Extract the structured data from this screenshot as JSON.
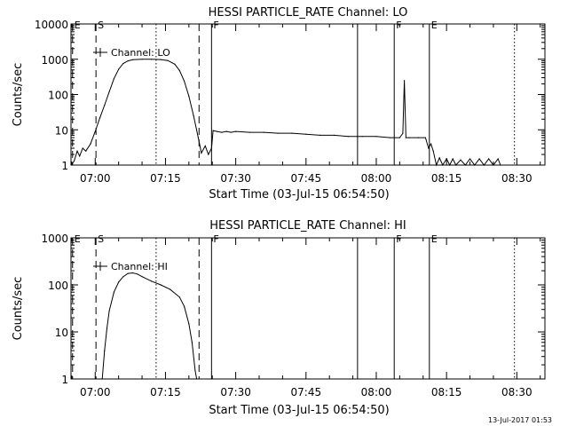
{
  "footer": {
    "timestamp": "13-Jul-2017 01:53"
  },
  "chart_data": [
    {
      "type": "line",
      "title": "HESSI PARTICLE_RATE Channel: LO",
      "xlabel": "Start Time (03-Jul-15 06:54:50)",
      "ylabel": "Counts/sec",
      "yscale": "log",
      "xlim": [
        "06:54:50",
        "08:36:00"
      ],
      "ylim": [
        1,
        10000
      ],
      "x_ticks": [
        "07:00",
        "07:15",
        "07:30",
        "07:45",
        "08:00",
        "08:15",
        "08:30"
      ],
      "y_ticks": [
        "1",
        "10",
        "100",
        "1000",
        "10000"
      ],
      "legend": {
        "position": "top-left",
        "entries": [
          "Channel: LO"
        ]
      },
      "series": [
        {
          "name": "Channel: LO",
          "points": [
            [
              "06:54:50",
              1
            ],
            [
              "06:55:30",
              1.3
            ],
            [
              "06:56:10",
              2.5
            ],
            [
              "06:56:40",
              1.8
            ],
            [
              "06:57:20",
              3
            ],
            [
              "06:58:00",
              2.5
            ],
            [
              "06:59:00",
              4
            ],
            [
              "07:00:00",
              9
            ],
            [
              "07:01:00",
              22
            ],
            [
              "07:02:00",
              50
            ],
            [
              "07:03:00",
              120
            ],
            [
              "07:04:00",
              280
            ],
            [
              "07:05:00",
              520
            ],
            [
              "07:06:00",
              760
            ],
            [
              "07:07:00",
              900
            ],
            [
              "07:08:00",
              970
            ],
            [
              "07:10:00",
              1000
            ],
            [
              "07:12:00",
              1000
            ],
            [
              "07:14:00",
              980
            ],
            [
              "07:15:30",
              920
            ],
            [
              "07:17:00",
              720
            ],
            [
              "07:18:00",
              480
            ],
            [
              "07:19:00",
              240
            ],
            [
              "07:20:00",
              90
            ],
            [
              "07:21:00",
              25
            ],
            [
              "07:22:00",
              6
            ],
            [
              "07:22:40",
              2.2
            ],
            [
              "07:23:30",
              3.5
            ],
            [
              "07:24:10",
              2.0
            ],
            [
              "07:24:50",
              3.0
            ],
            [
              "07:25:10",
              9.5
            ],
            [
              "07:26:00",
              9
            ],
            [
              "07:27:00",
              8.5
            ],
            [
              "07:28:00",
              9
            ],
            [
              "07:29:00",
              8.5
            ],
            [
              "07:30:00",
              9
            ],
            [
              "07:33:00",
              8.5
            ],
            [
              "07:36:00",
              8.5
            ],
            [
              "07:39:00",
              8
            ],
            [
              "07:42:00",
              8
            ],
            [
              "07:45:00",
              7.5
            ],
            [
              "07:48:00",
              7
            ],
            [
              "07:51:00",
              7
            ],
            [
              "07:54:00",
              6.5
            ],
            [
              "07:57:00",
              6.5
            ],
            [
              "08:00:00",
              6.5
            ],
            [
              "08:03:00",
              6
            ],
            [
              "08:05:00",
              6
            ],
            [
              "08:05:40",
              8
            ],
            [
              "08:06:00",
              250
            ],
            [
              "08:06:20",
              6
            ],
            [
              "08:07:00",
              6
            ],
            [
              "08:09:00",
              6
            ],
            [
              "08:10:30",
              6
            ],
            [
              "08:11:10",
              3
            ],
            [
              "08:11:40",
              4
            ],
            [
              "08:12:10",
              2.5
            ],
            [
              "08:12:50",
              1
            ],
            [
              "08:13:30",
              1.6
            ],
            [
              "08:14:10",
              1
            ],
            [
              "08:15:00",
              1.5
            ],
            [
              "08:15:40",
              1
            ],
            [
              "08:16:20",
              1.5
            ],
            [
              "08:17:00",
              1
            ],
            [
              "08:18:00",
              1.4
            ],
            [
              "08:19:00",
              1
            ],
            [
              "08:20:00",
              1.5
            ],
            [
              "08:21:00",
              1
            ],
            [
              "08:22:00",
              1.5
            ],
            [
              "08:23:00",
              1
            ],
            [
              "08:24:00",
              1.5
            ],
            [
              "08:25:00",
              1
            ],
            [
              "08:26:00",
              1.5
            ],
            [
              "08:26:30",
              1
            ]
          ]
        }
      ],
      "markers": [
        {
          "time": "06:55:10",
          "label": "E",
          "style": "dashed"
        },
        {
          "time": "07:00:10",
          "label": "S",
          "style": "dashed"
        },
        {
          "time": "07:13:00",
          "label": "",
          "style": "dotted"
        },
        {
          "time": "07:22:10",
          "label": "",
          "style": "dashed"
        },
        {
          "time": "07:24:50",
          "label": "F",
          "style": "solid"
        },
        {
          "time": "07:56:00",
          "label": "",
          "style": "solid"
        },
        {
          "time": "08:03:50",
          "label": "F",
          "style": "solid"
        },
        {
          "time": "08:11:20",
          "label": "E",
          "style": "solid"
        },
        {
          "time": "08:29:30",
          "label": "",
          "style": "dotted"
        }
      ]
    },
    {
      "type": "line",
      "title": "HESSI PARTICLE_RATE Channel: HI",
      "xlabel": "Start Time (03-Jul-15 06:54:50)",
      "ylabel": "Counts/sec",
      "yscale": "log",
      "xlim": [
        "06:54:50",
        "08:36:00"
      ],
      "ylim": [
        1,
        1000
      ],
      "x_ticks": [
        "07:00",
        "07:15",
        "07:30",
        "07:45",
        "08:00",
        "08:15",
        "08:30"
      ],
      "y_ticks": [
        "1",
        "10",
        "100",
        "1000"
      ],
      "legend": {
        "position": "top-left",
        "entries": [
          "Channel: HI"
        ]
      },
      "series": [
        {
          "name": "Channel: HI",
          "points": [
            [
              "07:01:30",
              1
            ],
            [
              "07:02:00",
              4
            ],
            [
              "07:02:30",
              12
            ],
            [
              "07:03:00",
              28
            ],
            [
              "07:04:00",
              70
            ],
            [
              "07:05:00",
              115
            ],
            [
              "07:06:00",
              150
            ],
            [
              "07:07:00",
              175
            ],
            [
              "07:08:00",
              180
            ],
            [
              "07:09:00",
              170
            ],
            [
              "07:10:00",
              150
            ],
            [
              "07:12:00",
              120
            ],
            [
              "07:14:00",
              100
            ],
            [
              "07:16:00",
              80
            ],
            [
              "07:18:00",
              55
            ],
            [
              "07:19:00",
              35
            ],
            [
              "07:20:00",
              15
            ],
            [
              "07:20:40",
              6
            ],
            [
              "07:21:20",
              1.5
            ],
            [
              "07:21:40",
              1
            ]
          ]
        }
      ],
      "markers": [
        {
          "time": "06:55:10",
          "label": "E",
          "style": "dashed"
        },
        {
          "time": "07:00:10",
          "label": "S",
          "style": "dashed"
        },
        {
          "time": "07:13:00",
          "label": "",
          "style": "dotted"
        },
        {
          "time": "07:22:10",
          "label": "",
          "style": "dashed"
        },
        {
          "time": "07:24:50",
          "label": "F",
          "style": "solid"
        },
        {
          "time": "07:56:00",
          "label": "",
          "style": "solid"
        },
        {
          "time": "08:03:50",
          "label": "F",
          "style": "solid"
        },
        {
          "time": "08:11:20",
          "label": "E",
          "style": "solid"
        },
        {
          "time": "08:29:30",
          "label": "",
          "style": "dotted"
        }
      ]
    }
  ]
}
